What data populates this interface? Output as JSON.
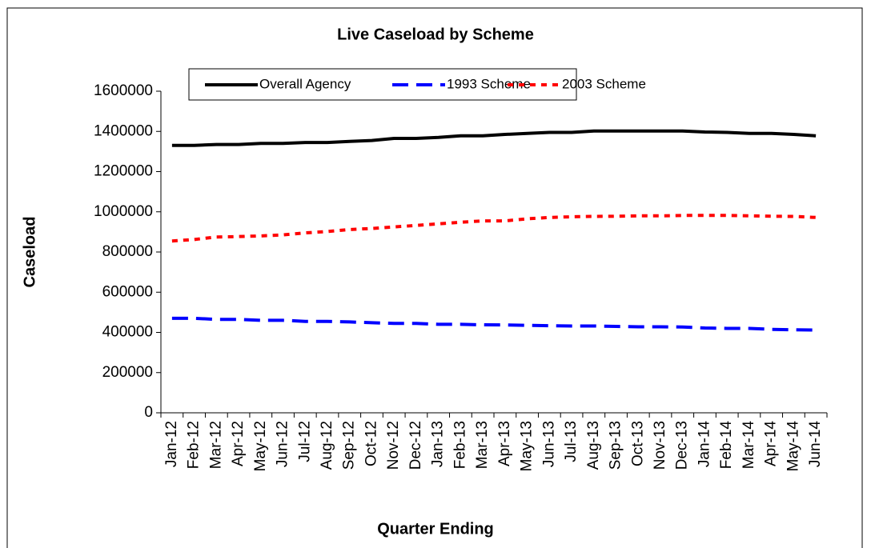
{
  "chart_data": {
    "type": "line",
    "title": "Live Caseload by Scheme",
    "x_label": "Quarter Ending",
    "y_label": "Caseload",
    "categories": [
      "Jan-12",
      "Feb-12",
      "Mar-12",
      "Apr-12",
      "May-12",
      "Jun-12",
      "Jul-12",
      "Aug-12",
      "Sep-12",
      "Oct-12",
      "Nov-12",
      "Dec-12",
      "Jan-13",
      "Feb-13",
      "Mar-13",
      "Apr-13",
      "May-13",
      "Jun-13",
      "Jul-13",
      "Aug-13",
      "Sep-13",
      "Oct-13",
      "Nov-13",
      "Dec-13",
      "Jan-14",
      "Feb-14",
      "Mar-14",
      "Apr-14",
      "May-14",
      "Jun-14"
    ],
    "series": [
      {
        "name": "Overall Agency",
        "color": "#000000",
        "style": "solid",
        "values": [
          1330000,
          1330000,
          1335000,
          1335000,
          1340000,
          1340000,
          1345000,
          1345000,
          1350000,
          1355000,
          1365000,
          1365000,
          1370000,
          1378000,
          1378000,
          1385000,
          1390000,
          1395000,
          1395000,
          1402000,
          1402000,
          1402000,
          1402000,
          1402000,
          1397000,
          1395000,
          1390000,
          1390000,
          1385000,
          1378000
        ]
      },
      {
        "name": "1993 Scheme",
        "color": "#0000ff",
        "style": "dashed",
        "values": [
          470000,
          470000,
          465000,
          465000,
          460000,
          460000,
          455000,
          455000,
          452000,
          448000,
          445000,
          445000,
          440000,
          440000,
          438000,
          437000,
          435000,
          433000,
          432000,
          432000,
          430000,
          428000,
          428000,
          427000,
          422000,
          420000,
          420000,
          415000,
          413000,
          412000
        ]
      },
      {
        "name": "2003 Scheme",
        "color": "#ff0000",
        "style": "dotted",
        "values": [
          855000,
          862000,
          875000,
          877000,
          880000,
          885000,
          895000,
          902000,
          912000,
          917000,
          925000,
          932000,
          940000,
          948000,
          955000,
          955000,
          965000,
          972000,
          975000,
          977000,
          978000,
          980000,
          980000,
          982000,
          982000,
          982000,
          980000,
          978000,
          977000,
          972000
        ]
      }
    ],
    "ylim": [
      0,
      1600000
    ],
    "yticks": [
      0,
      200000,
      400000,
      600000,
      800000,
      1000000,
      1200000,
      1400000,
      1600000
    ],
    "grid": false,
    "legend": "top"
  }
}
